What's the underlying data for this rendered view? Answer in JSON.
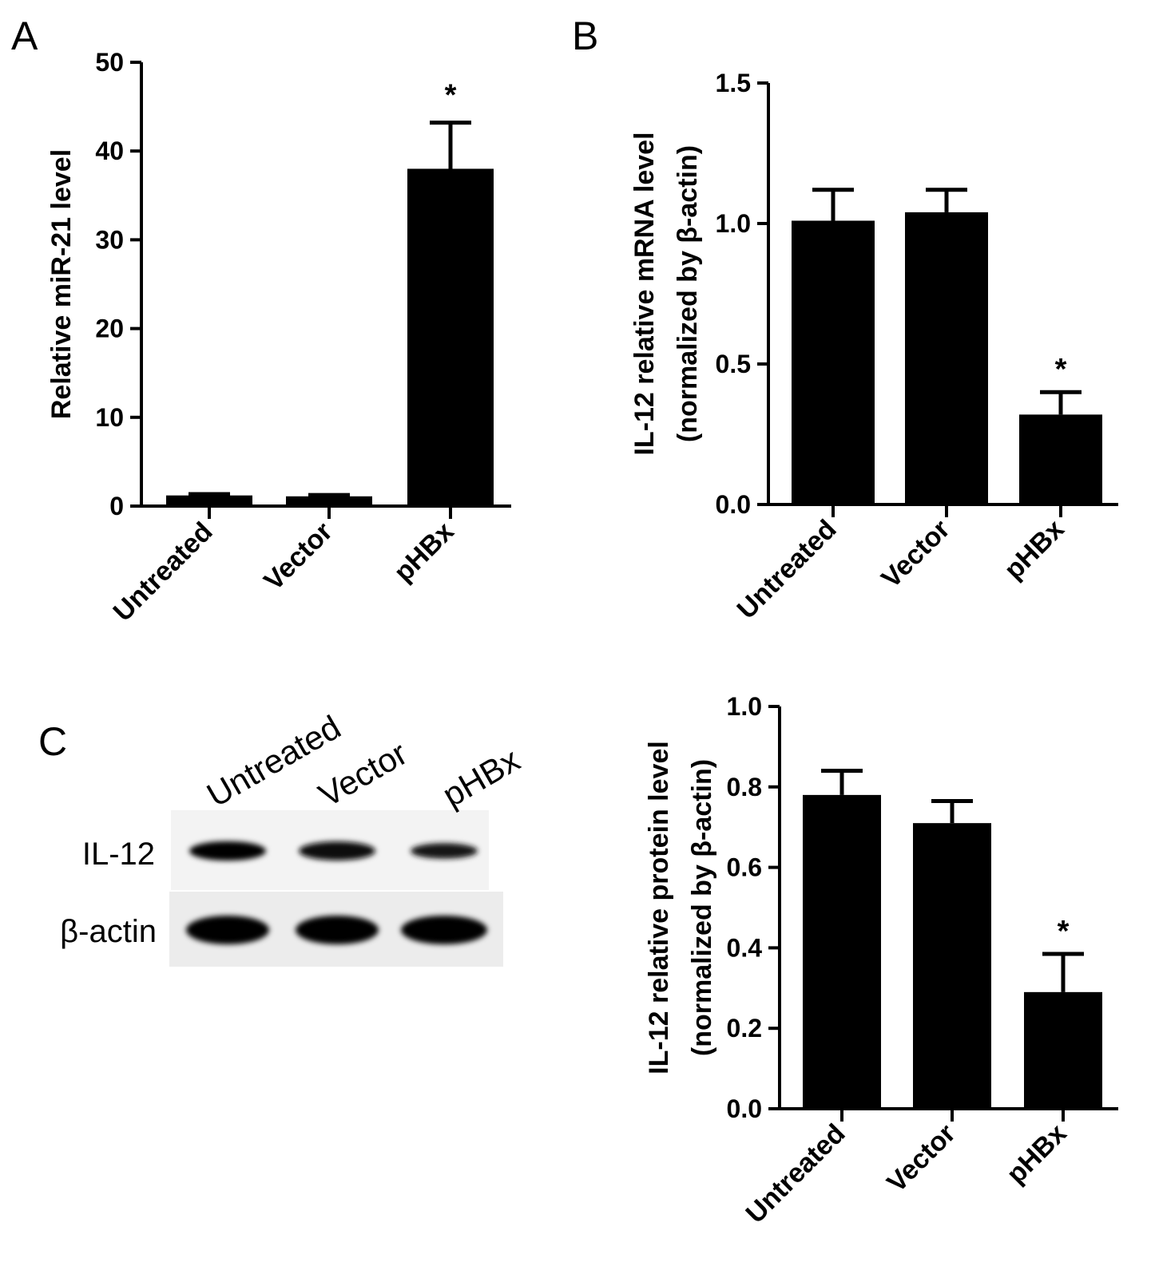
{
  "panels": {
    "a": "A",
    "b": "B",
    "c": "C"
  },
  "chart_data": [
    {
      "id": "A",
      "type": "bar",
      "categories": [
        "Untreated",
        "Vector",
        "pHBx"
      ],
      "values": [
        1.2,
        1.1,
        38.0
      ],
      "errors": [
        0.15,
        0.15,
        5.2
      ],
      "annotations": [
        "",
        "",
        "*"
      ],
      "ylabel": "Relative miR-21 level",
      "ylim": [
        0,
        50
      ],
      "yticks": [
        "0",
        "10",
        "20",
        "30",
        "40",
        "50"
      ],
      "grid": false
    },
    {
      "id": "B",
      "type": "bar",
      "categories": [
        "Untreated",
        "Vector",
        "pHBx"
      ],
      "values": [
        1.01,
        1.04,
        0.32
      ],
      "errors": [
        0.11,
        0.08,
        0.08
      ],
      "annotations": [
        "",
        "",
        "*"
      ],
      "ylabel": "IL-12 relative mRNA level",
      "ylabel2": "(normalized by β-actin)",
      "ylim": [
        0,
        1.5
      ],
      "yticks": [
        "0.0",
        "0.5",
        "1.0",
        "1.5"
      ],
      "grid": false
    },
    {
      "id": "C",
      "type": "bar",
      "categories": [
        "Untreated",
        "Vector",
        "pHBx"
      ],
      "values": [
        0.78,
        0.71,
        0.29
      ],
      "errors": [
        0.06,
        0.055,
        0.095
      ],
      "annotations": [
        "",
        "",
        "*"
      ],
      "ylabel": "IL-12 relative protein level",
      "ylabel2": "(normalized by β-actin)",
      "ylim": [
        0,
        1.0
      ],
      "yticks": [
        "0.0",
        "0.2",
        "0.4",
        "0.6",
        "0.8",
        "1.0"
      ],
      "grid": false
    }
  ],
  "western_blot": {
    "lanes": [
      "Untreated",
      "Vector",
      "pHBx"
    ],
    "rows": [
      {
        "label": "IL-12",
        "intensity": [
          0.85,
          0.8,
          0.45
        ]
      },
      {
        "label": "β-actin",
        "intensity": [
          1.0,
          1.0,
          1.0
        ]
      }
    ]
  }
}
